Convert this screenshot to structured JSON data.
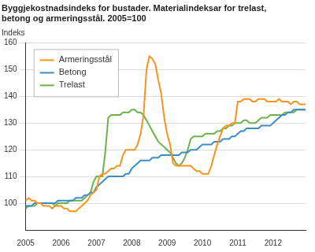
{
  "chart_data": {
    "type": "line",
    "title": [
      "Byggjekostnadsindeks for bustader. Materialindeksar for trelast,",
      "betong og armeringsstål. 2005=100"
    ],
    "y_label": "Indeks",
    "categories": [
      "2005",
      null,
      null,
      null,
      null,
      null,
      null,
      null,
      null,
      null,
      null,
      null,
      "2006",
      null,
      null,
      null,
      null,
      null,
      null,
      null,
      null,
      null,
      null,
      null,
      "2007",
      null,
      null,
      null,
      null,
      null,
      null,
      null,
      null,
      null,
      null,
      null,
      "2008",
      null,
      null,
      null,
      null,
      null,
      null,
      null,
      null,
      null,
      null,
      null,
      "2009",
      null,
      null,
      null,
      null,
      null,
      null,
      null,
      null,
      null,
      null,
      null,
      "2010",
      null,
      null,
      null,
      null,
      null,
      null,
      null,
      null,
      null,
      null,
      null,
      "2011",
      null,
      null,
      null,
      null,
      null,
      null,
      null,
      null,
      null,
      null,
      null,
      "2012",
      null,
      null,
      null,
      null,
      null,
      null,
      null,
      null,
      null,
      null,
      null
    ],
    "series": [
      {
        "name": "Armeringsstål",
        "color": "#f7941d",
        "values": [
          101,
          102,
          101,
          101,
          100,
          100,
          99,
          99,
          99,
          98,
          99,
          99,
          99,
          98,
          98,
          97,
          97,
          97,
          98,
          99,
          100,
          101,
          103,
          104,
          105,
          110,
          111,
          111,
          112,
          113,
          113,
          114,
          114,
          118,
          120,
          120,
          120,
          120,
          122,
          126,
          133,
          150,
          155,
          154,
          152,
          146,
          141,
          132,
          126,
          122,
          115,
          114,
          114,
          114,
          114,
          114,
          114,
          113,
          112,
          112,
          111,
          111,
          111,
          114,
          118,
          122,
          125,
          128,
          129,
          129,
          130,
          130,
          138,
          138,
          139,
          139,
          139,
          138,
          138,
          139,
          139,
          139,
          138,
          138,
          138,
          138,
          139,
          138,
          138,
          138,
          137,
          138,
          138,
          137,
          137,
          137
        ]
      },
      {
        "name": "Betong",
        "color": "#3c8dc5",
        "values": [
          99,
          99,
          99,
          100,
          100,
          100,
          100,
          100,
          100,
          100,
          100,
          101,
          101,
          101,
          101,
          101,
          101,
          102,
          102,
          102,
          103,
          103,
          104,
          104,
          106,
          107,
          108,
          109,
          110,
          110,
          110,
          110,
          110,
          110,
          111,
          111,
          113,
          114,
          115,
          116,
          116,
          116,
          116,
          117,
          117,
          117,
          118,
          118,
          118,
          118,
          118,
          118,
          118,
          119,
          119,
          119,
          120,
          120,
          120,
          121,
          122,
          122,
          122,
          122,
          123,
          123,
          123,
          124,
          124,
          124,
          125,
          125,
          126,
          127,
          127,
          128,
          128,
          128,
          128,
          128,
          129,
          129,
          129,
          129,
          130,
          131,
          132,
          133,
          133,
          134,
          134,
          135,
          135,
          135,
          135,
          135
        ]
      },
      {
        "name": "Trelast",
        "color": "#6ab44a",
        "values": [
          98,
          99,
          99,
          99,
          100,
          100,
          100,
          100,
          100,
          100,
          99,
          100,
          100,
          100,
          100,
          101,
          101,
          101,
          101,
          101,
          102,
          103,
          104,
          108,
          110,
          110,
          110,
          119,
          132,
          133,
          133,
          133,
          133,
          134,
          134,
          134,
          135,
          135,
          134,
          134,
          133,
          131,
          129,
          127,
          125,
          123,
          122,
          121,
          120,
          119,
          117,
          115,
          114,
          115,
          117,
          120,
          124,
          125,
          125,
          125,
          125,
          126,
          126,
          126,
          126,
          127,
          127,
          128,
          128,
          129,
          129,
          130,
          130,
          130,
          131,
          131,
          130,
          130,
          130,
          131,
          132,
          132,
          132,
          133,
          133,
          133,
          133,
          133,
          134,
          134,
          134,
          134,
          135,
          135,
          135,
          135
        ]
      }
    ],
    "ylim": [
      90,
      160
    ],
    "yticks": [
      100,
      110,
      120,
      130,
      140,
      150,
      160
    ],
    "grid": true,
    "legend": "upper left"
  }
}
